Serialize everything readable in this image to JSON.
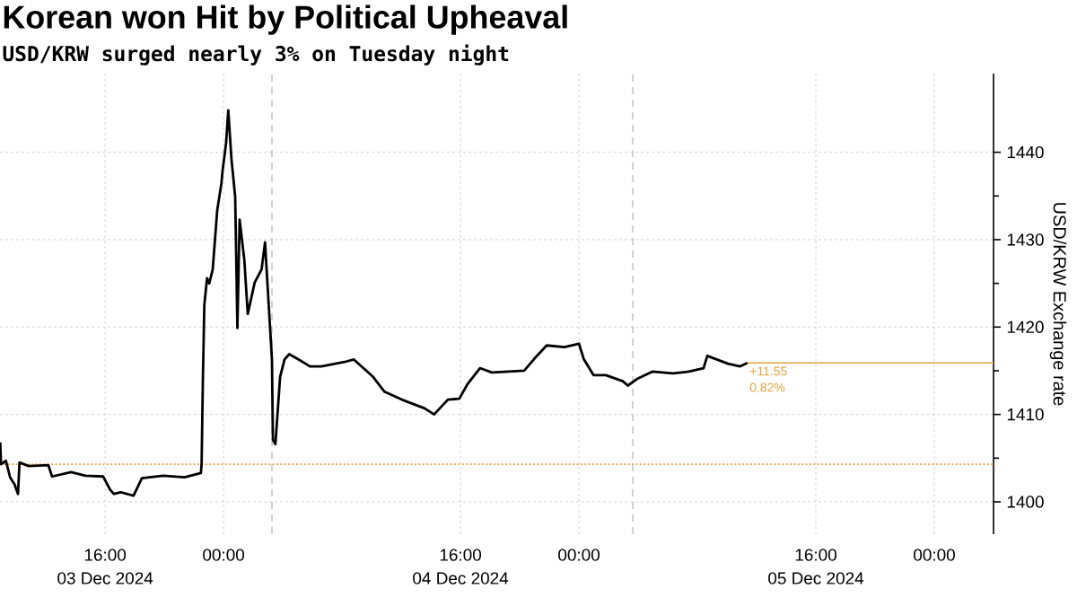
{
  "chart_data": {
    "type": "line",
    "title": "Korean won Hit by Political Upheaval",
    "subtitle": "USD/KRW surged nearly 3% on Tuesday night",
    "ylabel": "USD/KRW Exchange rate",
    "series": [
      {
        "color": "#000000",
        "x": [
          "2024-12-03T08:55",
          "2024-12-03T08:58",
          "2024-12-03T09:18",
          "2024-12-03T09:35",
          "2024-12-03T09:53",
          "2024-12-03T10:07",
          "2024-12-03T10:13",
          "2024-12-03T10:50",
          "2024-12-03T12:10",
          "2024-12-03T12:25",
          "2024-12-03T13:42",
          "2024-12-03T14:40",
          "2024-12-03T15:52",
          "2024-12-03T16:20",
          "2024-12-03T16:35",
          "2024-12-03T17:03",
          "2024-12-03T17:55",
          "2024-12-03T18:29",
          "2024-12-03T19:55",
          "2024-12-03T21:22",
          "2024-12-03T22:28",
          "2024-12-03T22:31",
          "2024-12-03T22:36",
          "2024-12-03T22:42",
          "2024-12-03T22:53",
          "2024-12-03T23:02",
          "2024-12-03T23:16",
          "2024-12-03T23:34",
          "2024-12-03T23:51",
          "2024-12-03T23:56",
          "2024-12-04T00:10",
          "2024-12-04T00:19",
          "2024-12-04T00:32",
          "2024-12-04T00:47",
          "2024-12-04T00:56",
          "2024-12-04T01:05",
          "2024-12-04T01:24",
          "2024-12-04T01:38",
          "2024-12-04T02:06",
          "2024-12-04T02:34",
          "2024-12-04T02:48",
          "2024-12-04T02:52",
          "2024-12-04T03:16",
          "2024-12-04T03:20",
          "2024-12-04T03:30",
          "2024-12-04T03:49",
          "2024-12-04T04:07",
          "2024-12-04T04:26",
          "2024-12-04T05:03",
          "2024-12-04T05:50",
          "2024-12-04T06:36",
          "2024-12-04T08:10",
          "2024-12-04T08:47",
          "2024-12-04T10:06",
          "2024-12-04T10:52",
          "2024-12-04T12:02",
          "2024-12-04T13:35",
          "2024-12-04T14:13",
          "2024-12-04T15:09",
          "2024-12-04T15:55",
          "2024-12-04T16:29",
          "2024-12-04T17:19",
          "2024-12-04T18:07",
          "2024-12-04T19:13",
          "2024-12-04T20:18",
          "2024-12-04T20:57",
          "2024-12-04T21:49",
          "2024-12-04T23:01",
          "2024-12-05T00:00",
          "2024-12-05T00:20",
          "2024-12-05T00:59",
          "2024-12-05T01:49",
          "2024-12-05T02:58",
          "2024-12-05T03:18",
          "2024-12-05T03:58",
          "2024-12-05T04:57",
          "2024-12-05T06:21",
          "2024-12-05T07:25",
          "2024-12-05T08:25",
          "2024-12-05T08:40",
          "2024-12-05T10:04",
          "2024-12-05T10:53",
          "2024-12-05T11:23"
        ],
        "values": [
          1406.8,
          1404.3,
          1404.7,
          1402.8,
          1402.0,
          1400.9,
          1404.5,
          1404.1,
          1404.2,
          1402.9,
          1403.4,
          1403.0,
          1402.9,
          1401.4,
          1400.9,
          1401.1,
          1400.7,
          1402.7,
          1403.0,
          1402.8,
          1403.3,
          1404.4,
          1413.8,
          1422.5,
          1425.6,
          1425.0,
          1426.6,
          1433.3,
          1436.4,
          1437.9,
          1441.0,
          1444.8,
          1439.2,
          1434.9,
          1419.9,
          1432.3,
          1427.7,
          1421.5,
          1425.1,
          1426.6,
          1429.7,
          1427.7,
          1416.3,
          1407.1,
          1406.6,
          1414.3,
          1416.3,
          1416.9,
          1416.3,
          1415.5,
          1415.5,
          1416.0,
          1416.3,
          1414.3,
          1412.6,
          1411.7,
          1410.7,
          1410.0,
          1411.7,
          1411.8,
          1413.5,
          1415.3,
          1414.8,
          1414.9,
          1415.0,
          1416.3,
          1417.9,
          1417.7,
          1418.1,
          1416.3,
          1414.5,
          1414.5,
          1413.8,
          1413.3,
          1414.1,
          1414.9,
          1414.7,
          1414.9,
          1415.3,
          1416.7,
          1415.8,
          1415.5,
          1415.9
        ]
      },
      {
        "color": "#e8a33d",
        "x": [
          "2024-12-05T11:23",
          "2024-12-06T04:00"
        ],
        "values": [
          1415.9,
          1415.9
        ]
      }
    ],
    "xlim": [
      "2024-12-03T08:54",
      "2024-12-06T04:00"
    ],
    "ylim": [
      1396.3,
      1449
    ],
    "xticks": [
      {
        "value": "2024-12-03T16:00",
        "label": "16:00"
      },
      {
        "value": "2024-12-04T00:00",
        "label": "00:00"
      },
      {
        "value": "2024-12-04T16:00",
        "label": "16:00"
      },
      {
        "value": "2024-12-05T00:00",
        "label": "00:00"
      },
      {
        "value": "2024-12-05T16:00",
        "label": "16:00"
      },
      {
        "value": "2024-12-06T00:00",
        "label": "00:00"
      }
    ],
    "yticks": [
      1400,
      1410,
      1420,
      1430,
      1440
    ],
    "grid": true,
    "ref_lines": [
      {
        "axis": "y",
        "value": 1404.3,
        "color": "#e8a33d",
        "line_style": "dotted"
      },
      {
        "axis": "x",
        "value": "2024-12-04T03:16",
        "color": "#b4b4b4",
        "line_style": "dashed"
      },
      {
        "axis": "x",
        "value": "2024-12-05T03:38",
        "color": "#b4b4b4",
        "line_style": "dashed"
      }
    ],
    "annotations": [
      "03 Dec 2024",
      "04 Dec 2024",
      "05 Dec 2024",
      {
        "text": "+11.55",
        "x": "2024-12-05T11:23",
        "y": 1415.9
      },
      {
        "text": "0.82%",
        "x": "2024-12-05T11:23",
        "y": 1415.9
      }
    ]
  }
}
